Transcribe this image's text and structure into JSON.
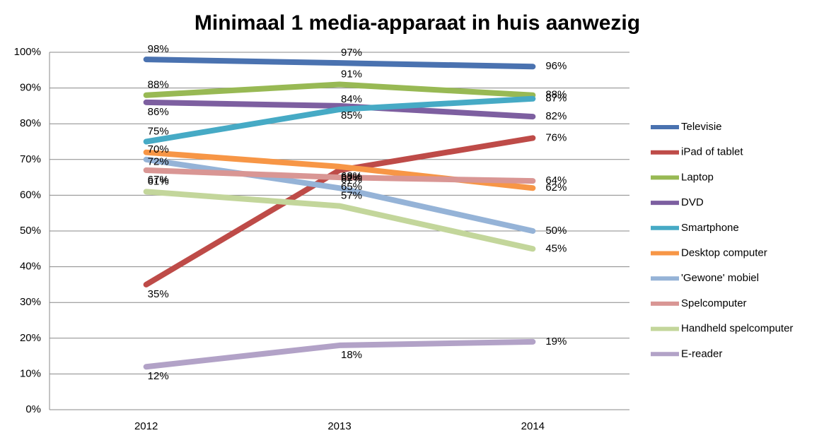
{
  "chart_data": {
    "type": "line",
    "title": "Minimaal 1 media-apparaat in huis aanwezig",
    "categories": [
      "2012",
      "2013",
      "2014"
    ],
    "ylim": [
      0,
      100
    ],
    "yticks": [
      {
        "value": 0,
        "label": "0%"
      },
      {
        "value": 10,
        "label": "10%"
      },
      {
        "value": 20,
        "label": "20%"
      },
      {
        "value": 30,
        "label": "30%"
      },
      {
        "value": 40,
        "label": "40%"
      },
      {
        "value": 50,
        "label": "50%"
      },
      {
        "value": 60,
        "label": "60%"
      },
      {
        "value": 70,
        "label": "70%"
      },
      {
        "value": 80,
        "label": "80%"
      },
      {
        "value": 90,
        "label": "90%"
      },
      {
        "value": 100,
        "label": "100%"
      }
    ],
    "grid": true,
    "legend": "right",
    "series": [
      {
        "name": "Televisie",
        "color": "#4a72b0",
        "values": [
          98,
          97,
          96
        ],
        "value_labels": [
          "98%",
          "97%",
          "96%"
        ]
      },
      {
        "name": "iPad of tablet",
        "color": "#be4b48",
        "values": [
          35,
          67,
          76
        ],
        "value_labels": [
          "35%",
          "67%",
          "76%"
        ]
      },
      {
        "name": "Laptop",
        "color": "#98b954",
        "values": [
          88,
          91,
          88
        ],
        "value_labels": [
          "88%",
          "91%",
          "88%"
        ]
      },
      {
        "name": "DVD",
        "color": "#7d5fa0",
        "values": [
          86,
          85,
          82
        ],
        "value_labels": [
          "86%",
          "85%",
          "82%"
        ]
      },
      {
        "name": "Smartphone",
        "color": "#46aac5",
        "values": [
          75,
          84,
          87
        ],
        "value_labels": [
          "75%",
          "84%",
          "87%"
        ]
      },
      {
        "name": "Desktop computer",
        "color": "#f79646",
        "values": [
          72,
          68,
          62
        ],
        "value_labels": [
          "72%",
          "68%",
          "62%"
        ]
      },
      {
        "name": "'Gewone' mobiel",
        "color": "#95b3d7",
        "values": [
          70,
          62,
          50
        ],
        "value_labels": [
          "70%",
          "62%",
          "50%"
        ]
      },
      {
        "name": "Spelcomputer",
        "color": "#d99694",
        "values": [
          67,
          65,
          64
        ],
        "value_labels": [
          "67%",
          "65%",
          "64%"
        ]
      },
      {
        "name": "Handheld spelcomputer",
        "color": "#c3d69b",
        "values": [
          61,
          57,
          45
        ],
        "value_labels": [
          "61%",
          "57%",
          "45%"
        ]
      },
      {
        "name": "E-reader",
        "color": "#b2a2c7",
        "values": [
          12,
          18,
          19
        ],
        "value_labels": [
          "12%",
          "18%",
          "19%"
        ]
      }
    ]
  }
}
